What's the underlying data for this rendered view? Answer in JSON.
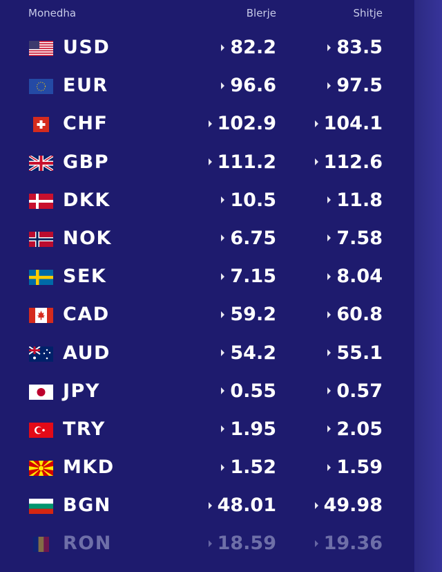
{
  "header": {
    "currency": "Monedha",
    "buy": "Blerje",
    "sell": "Shitje"
  },
  "rates": [
    {
      "code": "USD",
      "flag": "us-flag-icon",
      "buy": "82.2",
      "sell": "83.5"
    },
    {
      "code": "EUR",
      "flag": "eu-flag-icon",
      "buy": "96.6",
      "sell": "97.5"
    },
    {
      "code": "CHF",
      "flag": "ch-flag-icon",
      "buy": "102.9",
      "sell": "104.1"
    },
    {
      "code": "GBP",
      "flag": "gb-flag-icon",
      "buy": "111.2",
      "sell": "112.6"
    },
    {
      "code": "DKK",
      "flag": "dk-flag-icon",
      "buy": "10.5",
      "sell": "11.8"
    },
    {
      "code": "NOK",
      "flag": "no-flag-icon",
      "buy": "6.75",
      "sell": "7.58"
    },
    {
      "code": "SEK",
      "flag": "se-flag-icon",
      "buy": "7.15",
      "sell": "8.04"
    },
    {
      "code": "CAD",
      "flag": "ca-flag-icon",
      "buy": "59.2",
      "sell": "60.8"
    },
    {
      "code": "AUD",
      "flag": "au-flag-icon",
      "buy": "54.2",
      "sell": "55.1"
    },
    {
      "code": "JPY",
      "flag": "jp-flag-icon",
      "buy": "0.55",
      "sell": "0.57"
    },
    {
      "code": "TRY",
      "flag": "tr-flag-icon",
      "buy": "1.95",
      "sell": "2.05"
    },
    {
      "code": "MKD",
      "flag": "mk-flag-icon",
      "buy": "1.52",
      "sell": "1.59"
    },
    {
      "code": "BGN",
      "flag": "bg-flag-icon",
      "buy": "48.01",
      "sell": "49.98"
    },
    {
      "code": "RON",
      "flag": "ro-flag-icon",
      "buy": "18.59",
      "sell": "19.36"
    }
  ],
  "colors": {
    "background": "#1e1b6e",
    "side_panel": "#2c2a82",
    "text": "#ffffff",
    "header_text": "#c8cbe8",
    "faded_text": "#6e6fa8"
  }
}
